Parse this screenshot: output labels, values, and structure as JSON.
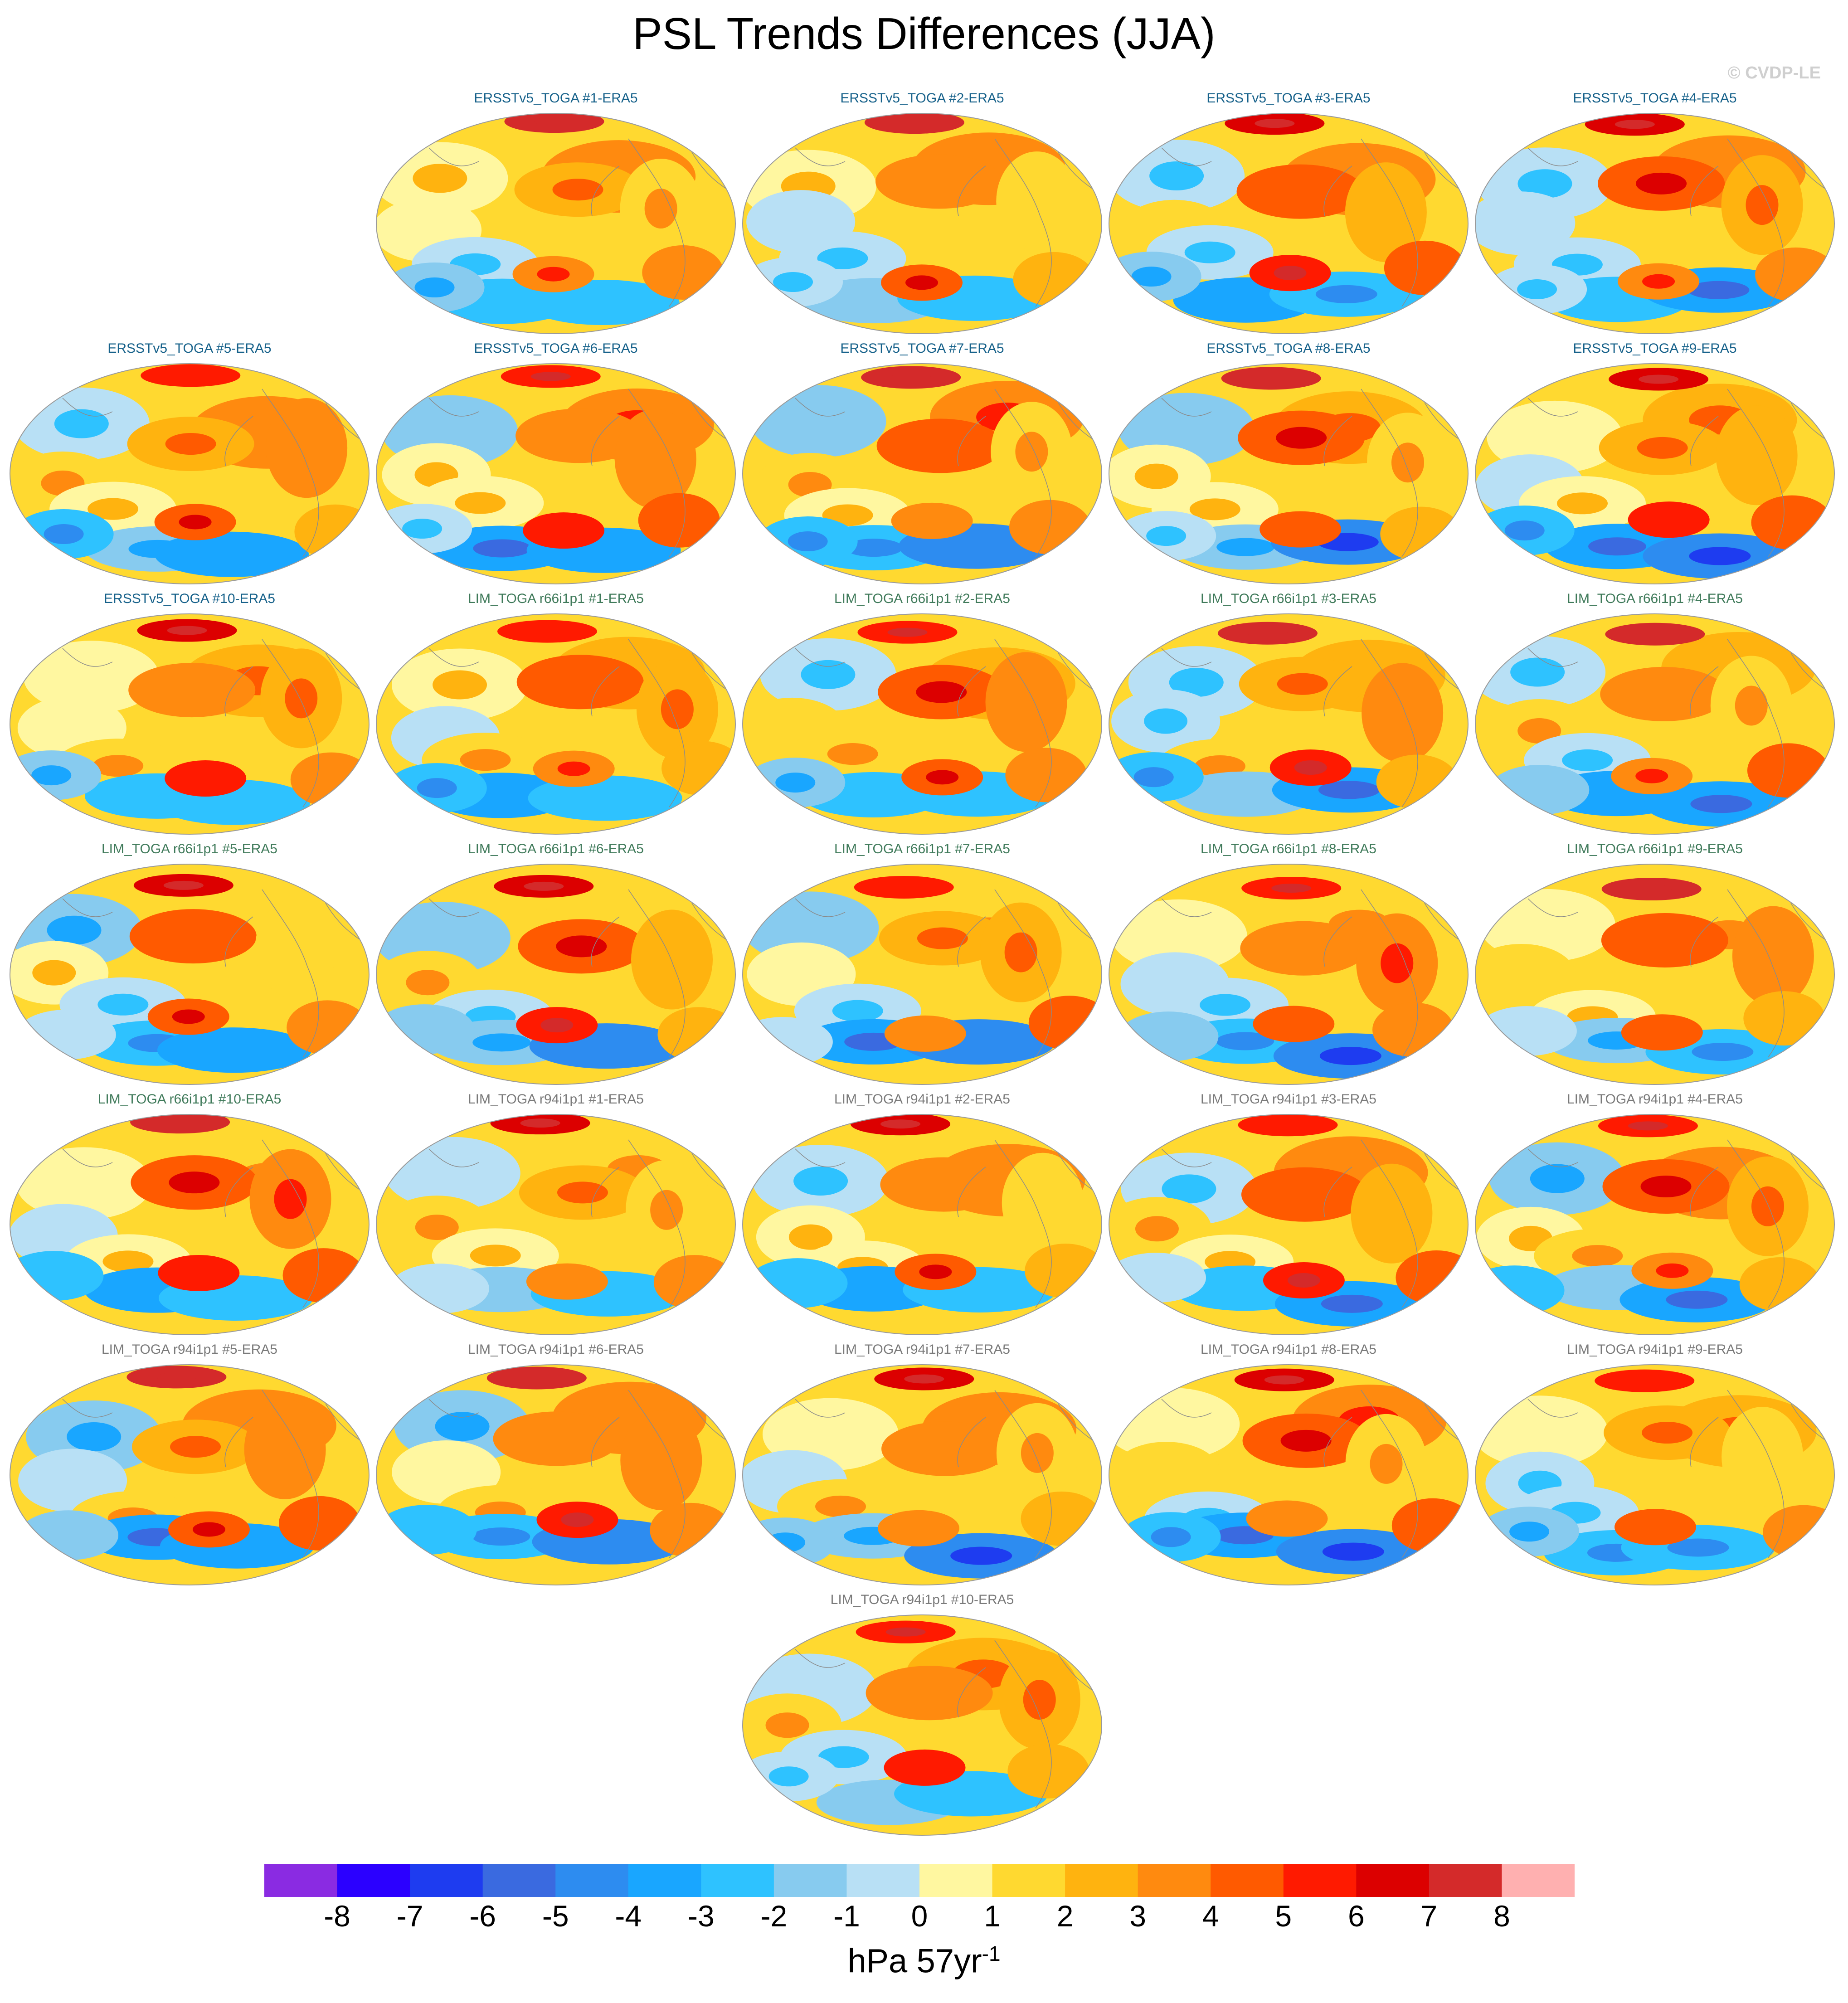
{
  "title": "PSL Trends Differences (JJA)",
  "copyright": "© CVDP-LE",
  "units": {
    "base": "hPa 57yr",
    "superscript": "-1"
  },
  "colorbar": {
    "colors": [
      "#8a2be2",
      "#2b00ff",
      "#1e3cf0",
      "#3a6ae0",
      "#2d8cf0",
      "#19a6ff",
      "#2ec2ff",
      "#87cbef",
      "#b8e0f5",
      "#fff7a0",
      "#ffd930",
      "#ffb30f",
      "#ff8a0f",
      "#ff5a00",
      "#ff1a00",
      "#dc0000",
      "#d42a2a",
      "#ffb0b0"
    ],
    "labels": [
      "-8",
      "-7",
      "-6",
      "-5",
      "-4",
      "-3",
      "-2",
      "-1",
      "0",
      "1",
      "2",
      "3",
      "4",
      "5",
      "6",
      "7",
      "8"
    ]
  },
  "panel_colors": {
    "ersst": "#16618a",
    "lim66": "#3f7a5a",
    "lim94": "#7a7a7a"
  },
  "panels": [
    {
      "title": "ERSSTv5_TOGA #1-ERA5",
      "group": "ersst"
    },
    {
      "title": "ERSSTv5_TOGA #2-ERA5",
      "group": "ersst"
    },
    {
      "title": "ERSSTv5_TOGA #3-ERA5",
      "group": "ersst"
    },
    {
      "title": "ERSSTv5_TOGA #4-ERA5",
      "group": "ersst"
    },
    {
      "title": "ERSSTv5_TOGA #5-ERA5",
      "group": "ersst"
    },
    {
      "title": "ERSSTv5_TOGA #6-ERA5",
      "group": "ersst"
    },
    {
      "title": "ERSSTv5_TOGA #7-ERA5",
      "group": "ersst"
    },
    {
      "title": "ERSSTv5_TOGA #8-ERA5",
      "group": "ersst"
    },
    {
      "title": "ERSSTv5_TOGA #9-ERA5",
      "group": "ersst"
    },
    {
      "title": "ERSSTv5_TOGA #10-ERA5",
      "group": "ersst"
    },
    {
      "title": "LIM_TOGA r66i1p1 #1-ERA5",
      "group": "lim66"
    },
    {
      "title": "LIM_TOGA r66i1p1 #2-ERA5",
      "group": "lim66"
    },
    {
      "title": "LIM_TOGA r66i1p1 #3-ERA5",
      "group": "lim66"
    },
    {
      "title": "LIM_TOGA r66i1p1 #4-ERA5",
      "group": "lim66"
    },
    {
      "title": "LIM_TOGA r66i1p1 #5-ERA5",
      "group": "lim66"
    },
    {
      "title": "LIM_TOGA r66i1p1 #6-ERA5",
      "group": "lim66"
    },
    {
      "title": "LIM_TOGA r66i1p1 #7-ERA5",
      "group": "lim66"
    },
    {
      "title": "LIM_TOGA r66i1p1 #8-ERA5",
      "group": "lim66"
    },
    {
      "title": "LIM_TOGA r66i1p1 #9-ERA5",
      "group": "lim66"
    },
    {
      "title": "LIM_TOGA r66i1p1 #10-ERA5",
      "group": "lim66"
    },
    {
      "title": "LIM_TOGA r94i1p1 #1-ERA5",
      "group": "lim94"
    },
    {
      "title": "LIM_TOGA r94i1p1 #2-ERA5",
      "group": "lim94"
    },
    {
      "title": "LIM_TOGA r94i1p1 #3-ERA5",
      "group": "lim94"
    },
    {
      "title": "LIM_TOGA r94i1p1 #4-ERA5",
      "group": "lim94"
    },
    {
      "title": "LIM_TOGA r94i1p1 #5-ERA5",
      "group": "lim94"
    },
    {
      "title": "LIM_TOGA r94i1p1 #6-ERA5",
      "group": "lim94"
    },
    {
      "title": "LIM_TOGA r94i1p1 #7-ERA5",
      "group": "lim94"
    },
    {
      "title": "LIM_TOGA r94i1p1 #8-ERA5",
      "group": "lim94"
    },
    {
      "title": "LIM_TOGA r94i1p1 #9-ERA5",
      "group": "lim94"
    },
    {
      "title": "LIM_TOGA r94i1p1 #10-ERA5",
      "group": "lim94"
    }
  ]
}
